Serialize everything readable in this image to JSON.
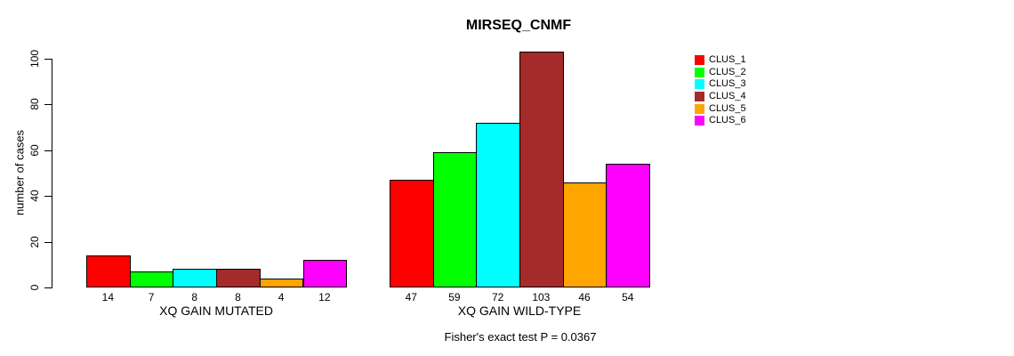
{
  "chart_data": {
    "type": "bar",
    "title": "MIRSEQ_CNMF",
    "ylabel": "number of cases",
    "xlabel": "",
    "ylim": [
      0,
      100
    ],
    "yticks": [
      0,
      20,
      40,
      60,
      80,
      100
    ],
    "grid": false,
    "legend_position": "top-right",
    "categories": [
      "XQ GAIN MUTATED",
      "XQ GAIN WILD-TYPE"
    ],
    "series": [
      {
        "name": "CLUS_1",
        "color": "#FF0000",
        "values": [
          14,
          47
        ]
      },
      {
        "name": "CLUS_2",
        "color": "#00FF00",
        "values": [
          7,
          59
        ]
      },
      {
        "name": "CLUS_3",
        "color": "#00FFFF",
        "values": [
          8,
          72
        ]
      },
      {
        "name": "CLUS_4",
        "color": "#A52A2A",
        "values": [
          8,
          103
        ]
      },
      {
        "name": "CLUS_5",
        "color": "#FFA500",
        "values": [
          4,
          46
        ]
      },
      {
        "name": "CLUS_6",
        "color": "#FF00FF",
        "values": [
          12,
          54
        ]
      }
    ],
    "annotation": "Fisher's exact test P = 0.0367"
  }
}
